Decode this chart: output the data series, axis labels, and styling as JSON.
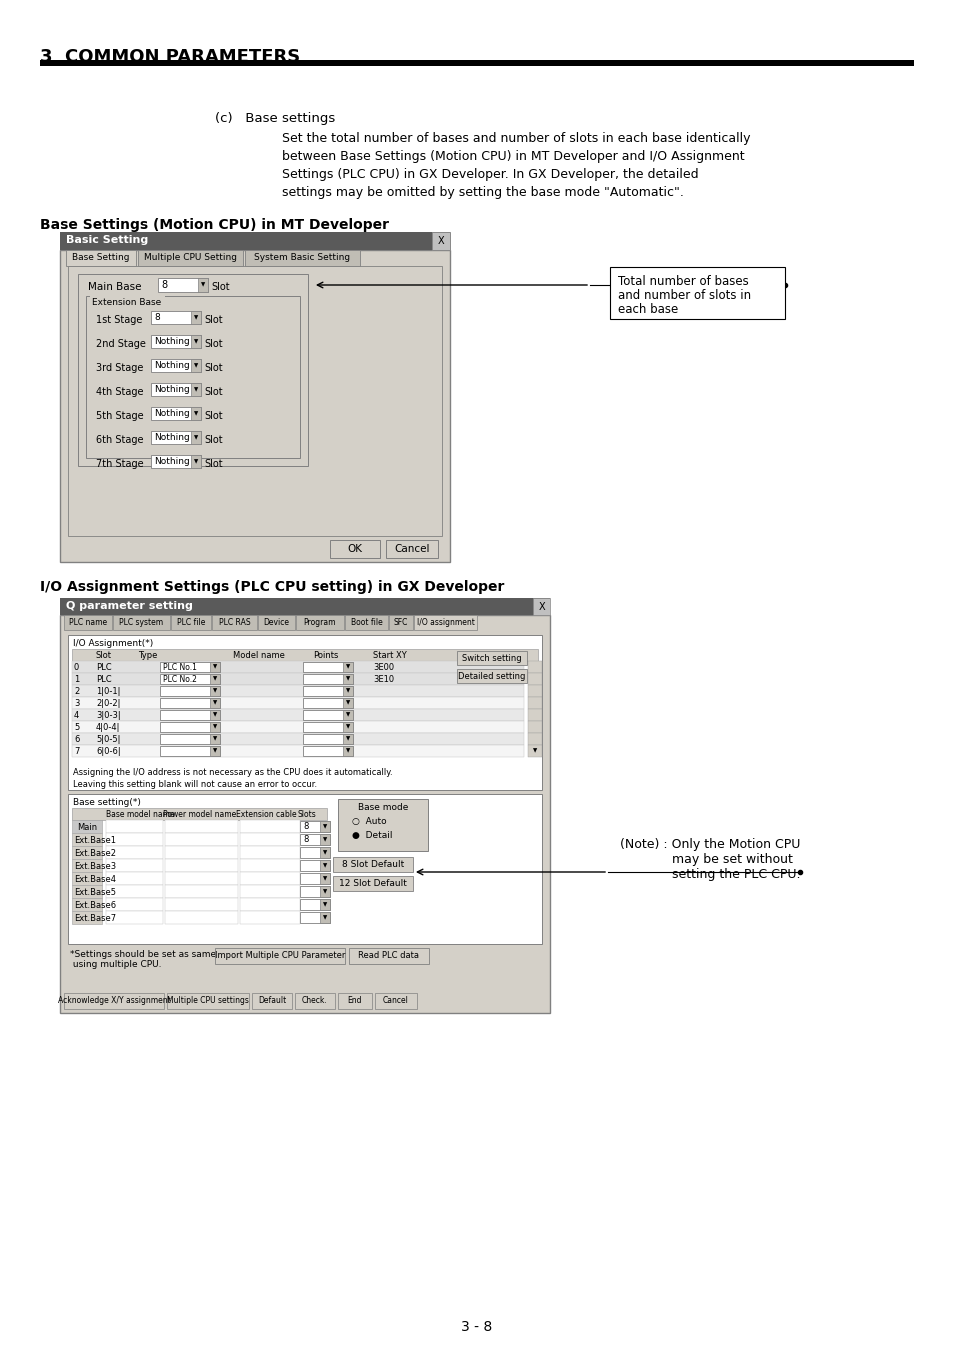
{
  "page_title": "3  COMMON PARAMETERS",
  "section_c_label": "(c)   Base settings",
  "section_c_text_line1": "Set the total number of bases and number of slots in each base identically",
  "section_c_text_line2": "between Base Settings (Motion CPU) in MT Developer and I/O Assignment",
  "section_c_text_line3": "Settings (PLC CPU) in GX Developer. In GX Developer, the detailed",
  "section_c_text_line4": "settings may be omitted by setting the base mode \"Automatic\".",
  "label1": "Base Settings (Motion CPU) in MT Developer",
  "label2": "I/O Assignment Settings (PLC CPU setting) in GX Developer",
  "annotation1_line1": "Total number of bases",
  "annotation1_line2": "and number of slots in",
  "annotation1_line3": "each base",
  "annotation2": "(Note) : Only the Motion CPU\n             may be set without\n             setting the PLC CPU.",
  "page_number": "3 - 8",
  "bg_color": "#ffffff",
  "title_bar_color": "#000000",
  "dlg_bg": "#d4d0c8",
  "dlg_dark": "#5a5a5a",
  "tab_active": "#d4d0c8",
  "tab_inactive": "#c0bdb5"
}
